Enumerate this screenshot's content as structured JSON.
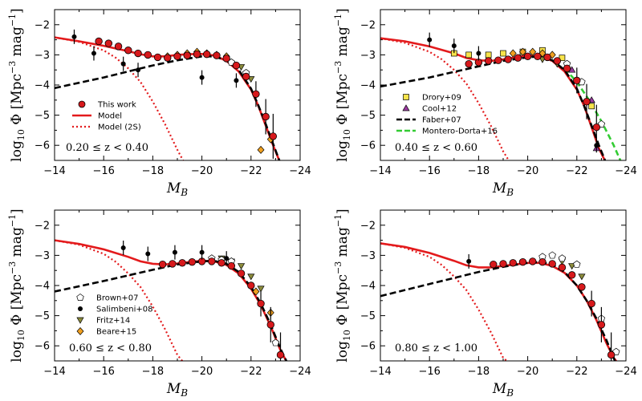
{
  "chart_data": [
    {
      "type": "scatter",
      "panel": "top-left",
      "xlabel": "M_B",
      "ylabel": "log10 Φ [Mpc^-3 mag^-1]",
      "xlim": [
        -14,
        -24
      ],
      "ylim": [
        -6.5,
        -1.5
      ],
      "xticks": [
        "−14",
        "−16",
        "−18",
        "−20",
        "−22",
        "−24"
      ],
      "yticks": [
        "−2",
        "−3",
        "−4",
        "−5",
        "−6"
      ],
      "redshift_label": "0.20 ≤ z < 0.40",
      "legend_position": "lower-left",
      "legend": [
        {
          "label": "This work",
          "style": "red-circle"
        },
        {
          "label": "Model",
          "style": "red-solid"
        },
        {
          "label": "Model (2S)",
          "style": "red-dotted"
        }
      ],
      "model": {
        "x": [
          -14,
          -15,
          -16,
          -17,
          -17.5,
          -18,
          -18.5,
          -19,
          -19.5,
          -20,
          -20.5,
          -21,
          -21.5,
          -22,
          -22.3,
          -22.6,
          -22.9,
          -23.2
        ],
        "y": [
          -2.42,
          -2.55,
          -2.7,
          -2.88,
          -2.98,
          -3.05,
          -3.05,
          -3.0,
          -2.98,
          -2.97,
          -3.02,
          -3.2,
          -3.55,
          -4.15,
          -4.7,
          -5.35,
          -6.0,
          -6.6
        ]
      },
      "model_2s": {
        "x": [
          -14,
          -15,
          -16,
          -16.5,
          -17,
          -17.5,
          -18,
          -18.5,
          -19,
          -19.3
        ],
        "y": [
          -2.42,
          -2.57,
          -2.85,
          -3.1,
          -3.45,
          -3.9,
          -4.55,
          -5.3,
          -6.15,
          -6.6
        ]
      },
      "schechter": {
        "x": [
          -14,
          -16,
          -18,
          -19,
          -20,
          -20.5,
          -21,
          -21.5,
          -22,
          -22.3,
          -22.6,
          -22.9,
          -23.2
        ],
        "y": [
          -4.1,
          -3.75,
          -3.35,
          -3.18,
          -3.05,
          -3.05,
          -3.18,
          -3.5,
          -4.12,
          -4.68,
          -5.3,
          -5.95,
          -6.6
        ]
      },
      "this_work": {
        "x": [
          -15.8,
          -16.2,
          -16.6,
          -17.0,
          -17.4,
          -17.8,
          -18.2,
          -18.6,
          -19.0,
          -19.4,
          -19.8,
          -20.2,
          -20.6,
          -21.0,
          -21.4,
          -21.8,
          -22.2,
          -22.6,
          -22.9
        ],
        "y": [
          -2.55,
          -2.62,
          -2.72,
          -2.85,
          -2.95,
          -3.0,
          -3.08,
          -3.1,
          -3.05,
          -3.02,
          -2.98,
          -2.98,
          -3.02,
          -3.12,
          -3.35,
          -3.72,
          -4.3,
          -5.05,
          -5.7
        ]
      },
      "black_points": {
        "x": [
          -14.8,
          -15.6,
          -16.8,
          -17.4,
          -20.0,
          -21.4
        ],
        "y": [
          -2.4,
          -2.95,
          -3.3,
          -3.5,
          -3.75,
          -3.85
        ]
      },
      "diamonds": {
        "x": [
          -18.6,
          -19.0,
          -19.4,
          -19.8,
          -20.2,
          -20.6,
          -21.0,
          -22.4,
          -22.8
        ],
        "y": [
          -3.05,
          -3.0,
          -2.95,
          -2.9,
          -2.95,
          -3.0,
          -3.05,
          -6.15,
          -5.8
        ]
      },
      "squares": {
        "x": [],
        "y": []
      },
      "triangles_up": {
        "x": [],
        "y": []
      },
      "triangles_down": {
        "x": [
          -21.6,
          -22.0
        ],
        "y": [
          -3.4,
          -3.8
        ]
      },
      "pentagons": {
        "x": [
          -21.2,
          -21.8
        ],
        "y": [
          -3.25,
          -3.6
        ]
      },
      "green_dashed": {
        "x": [],
        "y": []
      }
    },
    {
      "type": "scatter",
      "panel": "top-right",
      "xlabel": "M_B",
      "ylabel": "log10 Φ [Mpc^-3 mag^-1]",
      "xlim": [
        -14,
        -24
      ],
      "ylim": [
        -6.5,
        -1.5
      ],
      "xticks": [
        "−14",
        "−16",
        "−18",
        "−20",
        "−22",
        "−24"
      ],
      "yticks": [
        "−2",
        "−3",
        "−4",
        "−5",
        "−6"
      ],
      "redshift_label": "0.40 ≤ z < 0.60",
      "legend_position": "lower-right",
      "legend": [
        {
          "label": "Drory+09",
          "style": "yellow-square"
        },
        {
          "label": "Cool+12",
          "style": "purple-triangle"
        },
        {
          "label": "Faber+07",
          "style": "black-dashed"
        },
        {
          "label": "Montero-Dorta+16",
          "style": "green-dashed"
        }
      ],
      "model": {
        "x": [
          -14,
          -15,
          -16,
          -17,
          -17.5,
          -18,
          -18.5,
          -19,
          -19.5,
          -20,
          -20.5,
          -21,
          -21.5,
          -22,
          -22.3,
          -22.6,
          -22.9,
          -23.2
        ],
        "y": [
          -2.45,
          -2.55,
          -2.72,
          -2.95,
          -3.1,
          -3.18,
          -3.2,
          -3.15,
          -3.08,
          -3.02,
          -3.05,
          -3.2,
          -3.55,
          -4.15,
          -4.7,
          -5.4,
          -6.1,
          -6.6
        ]
      },
      "model_2s": {
        "x": [
          -14,
          -15,
          -16,
          -16.5,
          -17,
          -17.5,
          -18,
          -18.5,
          -19,
          -19.3
        ],
        "y": [
          -2.45,
          -2.6,
          -2.9,
          -3.15,
          -3.5,
          -3.95,
          -4.6,
          -5.35,
          -6.2,
          -6.6
        ]
      },
      "schechter": {
        "x": [
          -14,
          -16,
          -18,
          -19,
          -20,
          -20.5,
          -21,
          -21.5,
          -22,
          -22.3,
          -22.6,
          -22.9,
          -23.2
        ],
        "y": [
          -4.05,
          -3.75,
          -3.38,
          -3.2,
          -3.08,
          -3.05,
          -3.18,
          -3.5,
          -4.12,
          -4.7,
          -5.35,
          -6.0,
          -6.6
        ]
      },
      "this_work": {
        "x": [
          -17.6,
          -18.0,
          -18.4,
          -18.8,
          -19.2,
          -19.6,
          -20.0,
          -20.4,
          -20.8,
          -21.2,
          -21.6,
          -22.0,
          -22.4,
          -22.8
        ],
        "y": [
          -3.3,
          -3.25,
          -3.2,
          -3.18,
          -3.15,
          -3.1,
          -3.05,
          -3.05,
          -3.08,
          -3.2,
          -3.45,
          -3.85,
          -4.55,
          -5.4
        ]
      },
      "black_points": {
        "x": [
          -16.0,
          -17.0,
          -18.0,
          -22.8
        ],
        "y": [
          -2.5,
          -2.7,
          -2.95,
          -6.0
        ]
      },
      "diamonds": {
        "x": [
          -19.4,
          -19.8,
          -20.2,
          -20.6,
          -21.0
        ],
        "y": [
          -2.95,
          -2.9,
          -2.9,
          -2.95,
          -3.0
        ]
      },
      "squares": {
        "x": [
          -17.0,
          -17.6,
          -18.4,
          -19.0,
          -19.8,
          -20.6,
          -21.4,
          -22.6
        ],
        "y": [
          -2.95,
          -3.0,
          -3.0,
          -2.95,
          -2.9,
          -2.85,
          -3.1,
          -4.7
        ]
      },
      "triangles_up": {
        "x": [
          -21.8,
          -22.6,
          -22.8
        ],
        "y": [
          -3.5,
          -4.5,
          -6.1
        ]
      },
      "triangles_down": {
        "x": [
          -20.6,
          -21.2
        ],
        "y": [
          -3.15,
          -3.3
        ]
      },
      "pentagons": {
        "x": [
          -21.6,
          -22.2,
          -23.0
        ],
        "y": [
          -3.3,
          -3.9,
          -5.3
        ]
      },
      "green_dashed": {
        "x": [
          -21.5,
          -22,
          -22.5,
          -23,
          -23.5,
          -23.8
        ],
        "y": [
          -3.45,
          -3.9,
          -4.5,
          -5.2,
          -6.0,
          -6.55
        ]
      }
    },
    {
      "type": "scatter",
      "panel": "bottom-left",
      "xlabel": "M_B",
      "ylabel": "log10 Φ [Mpc^-3 mag^-1]",
      "xlim": [
        -14,
        -24
      ],
      "ylim": [
        -6.5,
        -1.5
      ],
      "xticks": [
        "−14",
        "−16",
        "−18",
        "−20",
        "−22",
        "−24"
      ],
      "yticks": [
        "−2",
        "−3",
        "−4",
        "−5",
        "−6"
      ],
      "redshift_label": "0.60 ≤ z < 0.80",
      "legend_position": "lower-right",
      "legend": [
        {
          "label": "Brown+07",
          "style": "white-pentagon"
        },
        {
          "label": "Salimbeni+08",
          "style": "black-circle"
        },
        {
          "label": "Fritz+14",
          "style": "olive-triangle-down"
        },
        {
          "label": "Beare+15",
          "style": "orange-diamond"
        }
      ],
      "model": {
        "x": [
          -14,
          -15,
          -16,
          -17,
          -17.5,
          -18,
          -18.5,
          -19,
          -19.5,
          -20,
          -20.5,
          -21,
          -21.5,
          -22,
          -22.4,
          -22.8,
          -23.2,
          -23.5
        ],
        "y": [
          -2.5,
          -2.62,
          -2.8,
          -3.05,
          -3.2,
          -3.28,
          -3.3,
          -3.27,
          -3.22,
          -3.18,
          -3.2,
          -3.32,
          -3.6,
          -4.1,
          -4.65,
          -5.35,
          -6.15,
          -6.6
        ]
      },
      "model_2s": {
        "x": [
          -14,
          -15,
          -16,
          -16.5,
          -17,
          -17.5,
          -18,
          -18.5,
          -19,
          -19.3
        ],
        "y": [
          -2.5,
          -2.65,
          -2.95,
          -3.22,
          -3.6,
          -4.05,
          -4.7,
          -5.45,
          -6.3,
          -6.6
        ]
      },
      "schechter": {
        "x": [
          -14,
          -16,
          -18,
          -19,
          -20,
          -20.5,
          -21,
          -21.5,
          -22,
          -22.4,
          -22.8,
          -23.2,
          -23.5
        ],
        "y": [
          -4.2,
          -3.85,
          -3.48,
          -3.3,
          -3.2,
          -3.18,
          -3.28,
          -3.55,
          -4.05,
          -4.6,
          -5.3,
          -6.1,
          -6.6
        ]
      },
      "this_work": {
        "x": [
          -18.4,
          -18.8,
          -19.2,
          -19.6,
          -20.0,
          -20.4,
          -20.8,
          -21.2,
          -21.6,
          -22.0,
          -22.4,
          -22.8,
          -23.2
        ],
        "y": [
          -3.3,
          -3.28,
          -3.25,
          -3.22,
          -3.2,
          -3.2,
          -3.25,
          -3.35,
          -3.6,
          -4.0,
          -4.6,
          -5.3,
          -6.3
        ]
      },
      "black_points": {
        "x": [
          -16.8,
          -17.8,
          -18.9,
          -20.0,
          -21.0
        ],
        "y": [
          -2.75,
          -2.95,
          -2.9,
          -2.9,
          -3.1
        ]
      },
      "diamonds": {
        "x": [
          -22.2,
          -22.8
        ],
        "y": [
          -4.2,
          -4.9
        ]
      },
      "squares": {
        "x": [],
        "y": []
      },
      "triangles_up": {
        "x": [],
        "y": []
      },
      "triangles_down": {
        "x": [
          -20.8,
          -21.2,
          -21.6,
          -22.0,
          -22.4
        ],
        "y": [
          -3.1,
          -3.2,
          -3.35,
          -3.7,
          -4.1
        ]
      },
      "pentagons": {
        "x": [
          -20.4,
          -20.8,
          -21.2,
          -23.0
        ],
        "y": [
          -3.1,
          -3.15,
          -3.2,
          -5.9
        ]
      },
      "green_dashed": {
        "x": [],
        "y": []
      }
    },
    {
      "type": "scatter",
      "panel": "bottom-right",
      "xlabel": "M_B",
      "ylabel": "log10 Φ [Mpc^-3 mag^-1]",
      "xlim": [
        -14,
        -24
      ],
      "ylim": [
        -6.5,
        -1.5
      ],
      "xticks": [
        "−14",
        "−16",
        "−18",
        "−20",
        "−22",
        "−24"
      ],
      "yticks": [
        "−2",
        "−3",
        "−4",
        "−5",
        "−6"
      ],
      "redshift_label": "0.80 ≤ z < 1.00",
      "legend_position": "",
      "legend": [],
      "model": {
        "x": [
          -14,
          -15,
          -16,
          -17,
          -17.5,
          -18,
          -18.5,
          -19,
          -19.5,
          -20,
          -20.5,
          -21,
          -21.5,
          -22,
          -22.4,
          -22.8,
          -23.2,
          -23.5,
          -23.7
        ],
        "y": [
          -2.6,
          -2.72,
          -2.92,
          -3.18,
          -3.33,
          -3.4,
          -3.4,
          -3.35,
          -3.3,
          -3.25,
          -3.25,
          -3.35,
          -3.58,
          -4.0,
          -4.5,
          -5.15,
          -5.9,
          -6.4,
          -6.6
        ]
      },
      "model_2s": {
        "x": [
          -14,
          -15,
          -16,
          -16.5,
          -17,
          -17.5,
          -18,
          -18.5,
          -19,
          -19.3
        ],
        "y": [
          -2.6,
          -2.75,
          -3.05,
          -3.32,
          -3.7,
          -4.15,
          -4.8,
          -5.55,
          -6.4,
          -6.6
        ]
      },
      "schechter": {
        "x": [
          -14,
          -16,
          -18,
          -19,
          -20,
          -20.5,
          -21,
          -21.5,
          -22,
          -22.4,
          -22.8,
          -23.2,
          -23.6
        ],
        "y": [
          -4.35,
          -3.95,
          -3.55,
          -3.38,
          -3.25,
          -3.22,
          -3.3,
          -3.55,
          -4.0,
          -4.5,
          -5.1,
          -5.8,
          -6.6
        ]
      },
      "this_work": {
        "x": [
          -18.6,
          -19.0,
          -19.4,
          -19.8,
          -20.2,
          -20.6,
          -21.0,
          -21.4,
          -21.8,
          -22.2,
          -22.6,
          -23.0,
          -23.4
        ],
        "y": [
          -3.3,
          -3.28,
          -3.25,
          -3.22,
          -3.2,
          -3.22,
          -3.28,
          -3.4,
          -3.65,
          -4.05,
          -4.6,
          -5.3,
          -6.3
        ]
      },
      "black_points": {
        "x": [
          -17.6
        ],
        "y": [
          -3.2
        ]
      },
      "diamonds": {
        "x": [],
        "y": []
      },
      "squares": {
        "x": [],
        "y": []
      },
      "triangles_up": {
        "x": [],
        "y": []
      },
      "triangles_down": {
        "x": [
          -21.4,
          -21.8,
          -22.2
        ],
        "y": [
          -3.2,
          -3.35,
          -3.7
        ]
      },
      "pentagons": {
        "x": [
          -20.6,
          -21.0,
          -21.4,
          -22.0,
          -23.0,
          -23.6
        ],
        "y": [
          -3.05,
          -3.0,
          -3.1,
          -3.3,
          -5.1,
          -6.2
        ]
      },
      "green_dashed": {
        "x": [],
        "y": []
      }
    }
  ],
  "colors": {
    "model_red": "#e31a1c",
    "circle_red": "#d7191c",
    "diamond_orange": "#f0a020",
    "square_yellow": "#f7e34a",
    "triangle_purple": "#9b3aa0",
    "triangle_olive": "#8c8c3c",
    "green_dashed": "#33cc33"
  }
}
